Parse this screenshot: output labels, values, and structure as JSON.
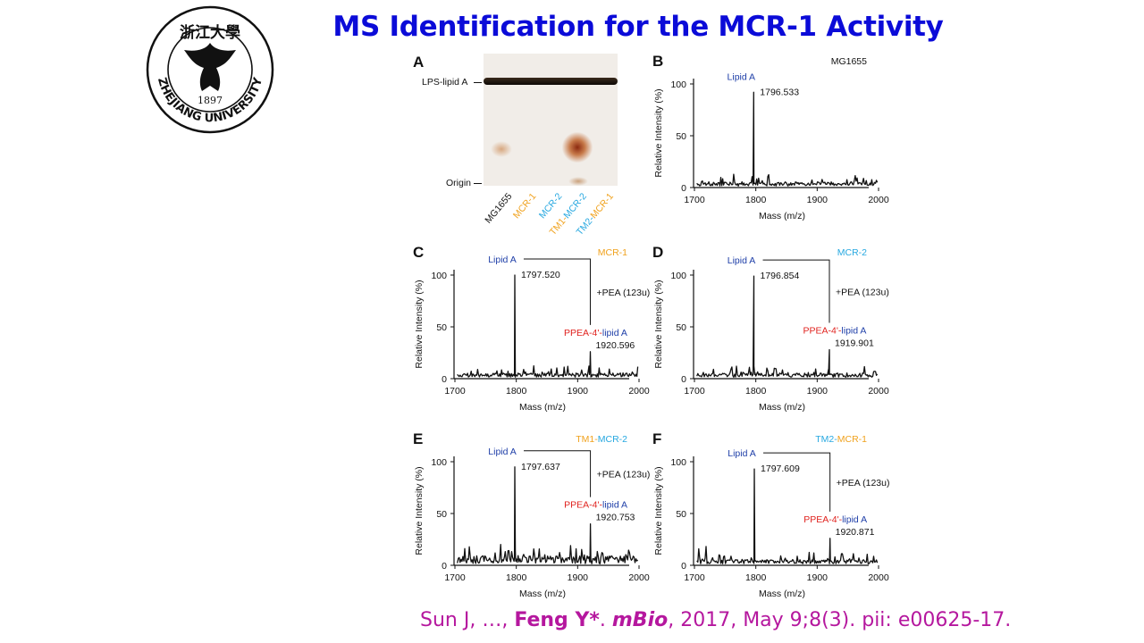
{
  "title": "MS Identification for the MCR-1 Activity",
  "logo": {
    "chars": "浙江大學",
    "year": "1897",
    "name": "ZHEJIANG UNIVERSITY"
  },
  "colors": {
    "title": "#0b0bd8",
    "citation": "#b5179e",
    "lipidA": "#1f3fa8",
    "ppea": "#e0221e",
    "mcr1": "#f0a21e",
    "mcr2": "#27a8e0"
  },
  "panelA": {
    "letter": "A",
    "lps_label": "LPS-lipid A",
    "origin_label": "Origin",
    "lanes": [
      {
        "parts": [
          {
            "text": "MG1655",
            "color": "#111111"
          }
        ]
      },
      {
        "parts": [
          {
            "text": "MCR-1",
            "color": "#f0a21e"
          }
        ]
      },
      {
        "parts": [
          {
            "text": "MCR-2",
            "color": "#27a8e0"
          }
        ]
      },
      {
        "parts": [
          {
            "text": "TM1-",
            "color": "#f0a21e"
          },
          {
            "text": "MCR-2",
            "color": "#27a8e0"
          }
        ]
      },
      {
        "parts": [
          {
            "text": "TM2-",
            "color": "#27a8e0"
          },
          {
            "text": "MCR-1",
            "color": "#f0a21e"
          }
        ]
      }
    ]
  },
  "panels": [
    {
      "letter": "B",
      "sample": [
        {
          "text": "MG1655",
          "color": "#111111"
        }
      ],
      "peak1": {
        "label": "Lipid A",
        "mz": "1796.533",
        "x": 1796.533,
        "y": 92
      },
      "peak2": null
    },
    {
      "letter": "C",
      "sample": [
        {
          "text": "MCR-1",
          "color": "#f0a21e"
        }
      ],
      "peak1": {
        "label": "Lipid A",
        "mz": "1797.520",
        "x": 1797.52,
        "y": 100
      },
      "peak2": {
        "label_red": "PPEA-4'-",
        "label_blue": "lipid A",
        "mz": "1920.596",
        "x": 1920.596,
        "y": 26
      },
      "shift": "+PEA (123u)"
    },
    {
      "letter": "D",
      "sample": [
        {
          "text": "MCR-2",
          "color": "#27a8e0"
        }
      ],
      "peak1": {
        "label": "Lipid A",
        "mz": "1796.854",
        "x": 1796.854,
        "y": 99
      },
      "peak2": {
        "label_red": "PPEA-4'-",
        "label_blue": "lipid A",
        "mz": "1919.901",
        "x": 1919.901,
        "y": 28
      },
      "shift": "+PEA (123u)"
    },
    {
      "letter": "E",
      "sample": [
        {
          "text": "TM1-",
          "color": "#f0a21e"
        },
        {
          "text": "MCR-2",
          "color": "#27a8e0"
        }
      ],
      "peak1": {
        "label": "Lipid A",
        "mz": "1797.637",
        "x": 1797.637,
        "y": 95
      },
      "peak2": {
        "label_red": "PPEA-4'-",
        "label_blue": "lipid A",
        "mz": "1920.753",
        "x": 1920.753,
        "y": 40
      },
      "shift": "+PEA (123u)"
    },
    {
      "letter": "F",
      "sample": [
        {
          "text": "TM2-",
          "color": "#27a8e0"
        },
        {
          "text": "MCR-1",
          "color": "#f0a21e"
        }
      ],
      "peak1": {
        "label": "Lipid A",
        "mz": "1797.609",
        "x": 1797.609,
        "y": 93
      },
      "peak2": {
        "label_red": "PPEA-4'-",
        "label_blue": "lipid A",
        "mz": "1920.871",
        "x": 1920.871,
        "y": 26
      },
      "shift": "+PEA (123u)"
    }
  ],
  "axes": {
    "xlabel": "Mass (m/z)",
    "ylabel": "Relative Intensity (%)",
    "xticks": [
      1700,
      1800,
      1900,
      2000
    ],
    "yticks": [
      0,
      50,
      100
    ],
    "xlim": [
      1700,
      2000
    ],
    "ylim": [
      0,
      100
    ]
  },
  "chart_data": [
    {
      "type": "line",
      "title": "MG1655",
      "xlabel": "Mass (m/z)",
      "ylabel": "Relative Intensity (%)",
      "xlim": [
        1700,
        2000
      ],
      "ylim": [
        0,
        100
      ],
      "series": [
        {
          "name": "Lipid A",
          "x": [
            1796.533
          ],
          "values": [
            92
          ]
        }
      ]
    },
    {
      "type": "line",
      "title": "MCR-1",
      "xlabel": "Mass (m/z)",
      "ylabel": "Relative Intensity (%)",
      "xlim": [
        1700,
        2000
      ],
      "ylim": [
        0,
        100
      ],
      "series": [
        {
          "name": "Lipid A",
          "x": [
            1797.52
          ],
          "values": [
            100
          ]
        },
        {
          "name": "PPEA-4'-lipid A",
          "x": [
            1920.596
          ],
          "values": [
            26
          ]
        }
      ]
    },
    {
      "type": "line",
      "title": "MCR-2",
      "xlabel": "Mass (m/z)",
      "ylabel": "Relative Intensity (%)",
      "xlim": [
        1700,
        2000
      ],
      "ylim": [
        0,
        100
      ],
      "series": [
        {
          "name": "Lipid A",
          "x": [
            1796.854
          ],
          "values": [
            99
          ]
        },
        {
          "name": "PPEA-4'-lipid A",
          "x": [
            1919.901
          ],
          "values": [
            28
          ]
        }
      ]
    },
    {
      "type": "line",
      "title": "TM1-MCR-2",
      "xlabel": "Mass (m/z)",
      "ylabel": "Relative Intensity (%)",
      "xlim": [
        1700,
        2000
      ],
      "ylim": [
        0,
        100
      ],
      "series": [
        {
          "name": "Lipid A",
          "x": [
            1797.637
          ],
          "values": [
            95
          ]
        },
        {
          "name": "PPEA-4'-lipid A",
          "x": [
            1920.753
          ],
          "values": [
            40
          ]
        }
      ]
    },
    {
      "type": "line",
      "title": "TM2-MCR-1",
      "xlabel": "Mass (m/z)",
      "ylabel": "Relative Intensity (%)",
      "xlim": [
        1700,
        2000
      ],
      "ylim": [
        0,
        100
      ],
      "series": [
        {
          "name": "Lipid A",
          "x": [
            1797.609
          ],
          "values": [
            93
          ]
        },
        {
          "name": "PPEA-4'-lipid A",
          "x": [
            1920.871
          ],
          "values": [
            26
          ]
        }
      ]
    }
  ],
  "citation": {
    "authors": "Sun J, …, ",
    "corresponding": "Feng Y*",
    "sep": ". ",
    "journal": "mBio",
    "details": ", 2017, May 9;8(3). pii: e00625-17."
  }
}
